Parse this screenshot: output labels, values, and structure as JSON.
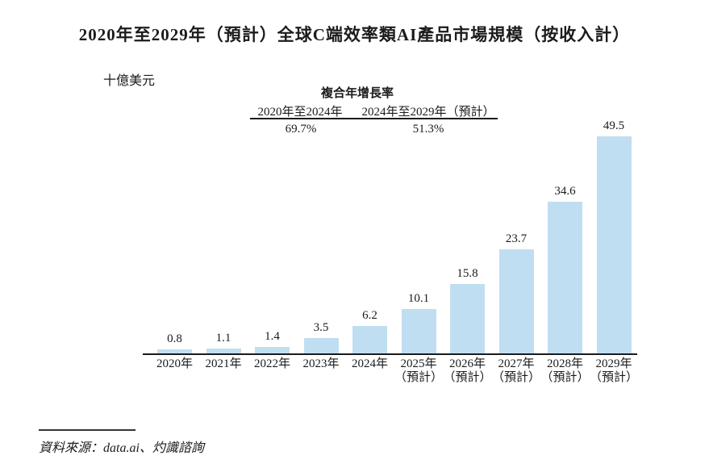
{
  "title": "2020年至2029年（預計）全球C端效率類AI產品市場規模（按收入計）",
  "unit_label": "十億美元",
  "cagr": {
    "title": "複合年增長率",
    "columns": [
      {
        "label": "2020年至2024年",
        "value": "69.7%"
      },
      {
        "label": "2024年至2029年（預計）",
        "value": "51.3%"
      }
    ]
  },
  "source": "資料來源：data.ai、灼識諮詢",
  "chart_data": {
    "type": "bar",
    "title": "2020年至2029年（預計）全球C端效率類AI產品市場規模（按收入計）",
    "categories": [
      "2020年",
      "2021年",
      "2022年",
      "2023年",
      "2024年",
      "2025年",
      "2026年",
      "2027年",
      "2028年",
      "2029年"
    ],
    "category_notes": [
      "",
      "",
      "",
      "",
      "",
      "（預計）",
      "（預計）",
      "（預計）",
      "（預計）",
      "（預計）"
    ],
    "values": [
      0.8,
      1.1,
      1.4,
      3.5,
      6.2,
      10.1,
      15.8,
      23.7,
      34.6,
      49.5
    ],
    "data_labels": [
      "0.8",
      "1.1",
      "1.4",
      "3.5",
      "6.2",
      "10.1",
      "15.8",
      "23.7",
      "34.6",
      "49.5"
    ],
    "xlabel": "",
    "ylabel": "十億美元",
    "ylim": [
      0,
      49.5
    ],
    "grid": false,
    "legend": "none",
    "bar_color": "#C0DEF1",
    "axis_color": "#1b1b1b",
    "cagr_2020_2024": "69.7%",
    "cagr_2024_2029": "51.3%"
  }
}
